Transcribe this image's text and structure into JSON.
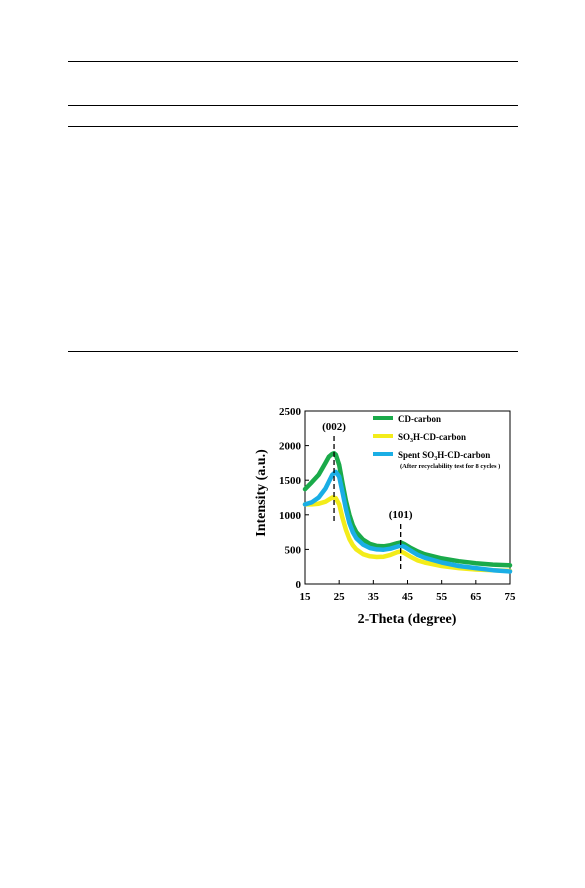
{
  "chart_data": {
    "type": "line",
    "xlabel": "2-Theta (degree)",
    "ylabel": "Intensity (a.u.)",
    "xlim": [
      15,
      75
    ],
    "ylim": [
      0,
      2500
    ],
    "xticks": [
      15,
      25,
      35,
      45,
      55,
      65,
      75
    ],
    "yticks": [
      0,
      500,
      1000,
      1500,
      2000,
      2500
    ],
    "grid": false,
    "legend": "top-right",
    "annotations": [
      {
        "text": "(002)",
        "x": 23.5
      },
      {
        "text": "(101)",
        "x": 43
      }
    ],
    "series": [
      {
        "name": "CD-carbon",
        "color": "#1aaa4a",
        "x": [
          15,
          17,
          19,
          21,
          22,
          23,
          23.5,
          24,
          25,
          26,
          27,
          28,
          29,
          30,
          32,
          34,
          36,
          38,
          40,
          42,
          43,
          44,
          46,
          48,
          50,
          55,
          60,
          65,
          70,
          75
        ],
        "y": [
          1370,
          1470,
          1580,
          1750,
          1840,
          1880,
          1890,
          1870,
          1720,
          1450,
          1200,
          1000,
          850,
          750,
          640,
          580,
          550,
          545,
          560,
          590,
          600,
          580,
          520,
          470,
          430,
          370,
          330,
          300,
          280,
          270
        ]
      },
      {
        "name": "SO3H-CD-carbon",
        "color": "#f3ec1a",
        "x": [
          15,
          17,
          19,
          21,
          22,
          23,
          24,
          25,
          26,
          27,
          28,
          29,
          30,
          32,
          34,
          36,
          38,
          40,
          42,
          43,
          44,
          46,
          48,
          50,
          55,
          60,
          65,
          70,
          75
        ],
        "y": [
          1150,
          1150,
          1160,
          1190,
          1220,
          1250,
          1240,
          1150,
          950,
          780,
          650,
          560,
          500,
          430,
          400,
          390,
          395,
          420,
          460,
          470,
          450,
          390,
          340,
          310,
          260,
          230,
          210,
          200,
          190
        ]
      },
      {
        "name": "Spent SO3H-CD-carbon",
        "note": "(After recyclability  test for 8 cycles )",
        "color": "#1aaee5",
        "x": [
          15,
          17,
          19,
          21,
          22,
          23,
          24,
          25,
          26,
          27,
          28,
          29,
          30,
          32,
          34,
          36,
          38,
          40,
          42,
          43,
          44,
          46,
          48,
          50,
          55,
          60,
          65,
          70,
          75
        ],
        "y": [
          1150,
          1180,
          1250,
          1380,
          1480,
          1580,
          1620,
          1550,
          1320,
          1080,
          880,
          750,
          660,
          570,
          520,
          500,
          495,
          510,
          540,
          555,
          540,
          480,
          420,
          380,
          310,
          260,
          230,
          200,
          180
        ]
      }
    ]
  }
}
